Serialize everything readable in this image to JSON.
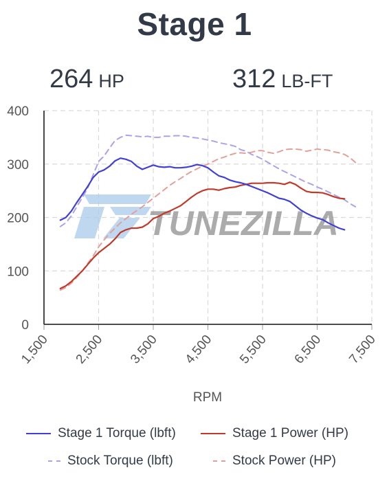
{
  "title": "Stage 1",
  "stats": {
    "hp_value": "264",
    "hp_unit": "HP",
    "tq_value": "312",
    "tq_unit": "LB-FT"
  },
  "watermark": "TUNEZILLA",
  "colors": {
    "stage1_torque": "#4040d8",
    "stage1_power": "#c0392b",
    "stock_torque": "#a9a4ea",
    "stock_power": "#e2a09a",
    "grid": "#d9d9d9",
    "axis": "#333333"
  },
  "chart_data": {
    "type": "line",
    "xlabel": "RPM",
    "ylabel": "",
    "xlim": [
      1500,
      7500
    ],
    "ylim": [
      0,
      400
    ],
    "x_ticks": [
      "1,500",
      "2,500",
      "3,500",
      "4,500",
      "5,500",
      "6,500",
      "7,500"
    ],
    "y_ticks": [
      "0",
      "100",
      "200",
      "300",
      "400"
    ],
    "grid": true,
    "legend_position": "bottom",
    "series": [
      {
        "name": "Stage 1 Torque (lbft)",
        "style": "solid",
        "color": "#4040d8",
        "x": [
          1800,
          1900,
          2000,
          2100,
          2200,
          2300,
          2400,
          2500,
          2600,
          2700,
          2800,
          2900,
          3000,
          3100,
          3200,
          3300,
          3400,
          3500,
          3600,
          3700,
          3800,
          3900,
          4000,
          4100,
          4200,
          4300,
          4400,
          4500,
          4600,
          4700,
          4800,
          4900,
          5000,
          5100,
          5200,
          5300,
          5400,
          5500,
          5600,
          5700,
          5800,
          5900,
          6000,
          6100,
          6200,
          6300,
          6400,
          6500,
          6600,
          6700,
          6800,
          6900,
          7000
        ],
        "values": [
          195,
          200,
          212,
          228,
          243,
          258,
          275,
          285,
          289,
          296,
          306,
          311,
          309,
          305,
          296,
          290,
          294,
          298,
          295,
          294,
          295,
          293,
          293,
          294,
          296,
          299,
          297,
          293,
          285,
          278,
          275,
          270,
          267,
          265,
          262,
          258,
          254,
          250,
          246,
          241,
          236,
          234,
          230,
          222,
          214,
          208,
          203,
          199,
          196,
          190,
          185,
          180,
          177
        ]
      },
      {
        "name": "Stage 1 Power (HP)",
        "style": "solid",
        "color": "#c0392b",
        "x": [
          1800,
          1900,
          2000,
          2100,
          2200,
          2300,
          2400,
          2500,
          2600,
          2700,
          2800,
          2900,
          3000,
          3100,
          3200,
          3300,
          3400,
          3500,
          3600,
          3700,
          3800,
          3900,
          4000,
          4100,
          4200,
          4300,
          4400,
          4500,
          4600,
          4700,
          4800,
          4900,
          5000,
          5100,
          5200,
          5300,
          5400,
          5500,
          5600,
          5700,
          5800,
          5900,
          6000,
          6100,
          6200,
          6300,
          6400,
          6500,
          6600,
          6700,
          6800,
          6900,
          7000
        ],
        "values": [
          67,
          72,
          80,
          90,
          100,
          112,
          124,
          134,
          142,
          150,
          160,
          172,
          177,
          180,
          180,
          182,
          188,
          198,
          202,
          208,
          212,
          217,
          222,
          230,
          238,
          245,
          250,
          253,
          253,
          251,
          254,
          256,
          257,
          260,
          262,
          264,
          264,
          264,
          265,
          265,
          264,
          262,
          266,
          262,
          255,
          249,
          247,
          247,
          246,
          243,
          239,
          236,
          235
        ]
      },
      {
        "name": "Stock Torque (lbft)",
        "style": "dashed",
        "color": "#a9a4ea",
        "x": [
          1800,
          1900,
          2000,
          2100,
          2200,
          2300,
          2400,
          2500,
          2600,
          2700,
          2800,
          2900,
          3000,
          3100,
          3200,
          3300,
          3400,
          3500,
          3600,
          3700,
          3800,
          3900,
          4000,
          4100,
          4200,
          4300,
          4400,
          4500,
          4600,
          4700,
          4800,
          4900,
          5000,
          5100,
          5200,
          5300,
          5400,
          5500,
          5600,
          5700,
          5800,
          5900,
          6000,
          6100,
          6200,
          6300,
          6400,
          6500,
          6600,
          6700,
          6800,
          6900,
          7000,
          7100,
          7200
        ],
        "values": [
          183,
          190,
          203,
          220,
          237,
          255,
          280,
          305,
          315,
          330,
          344,
          350,
          354,
          353,
          352,
          351,
          352,
          350,
          350,
          352,
          352,
          353,
          353,
          352,
          350,
          349,
          347,
          345,
          343,
          340,
          338,
          336,
          333,
          327,
          324,
          318,
          314,
          309,
          303,
          297,
          291,
          286,
          281,
          276,
          271,
          266,
          262,
          257,
          253,
          248,
          243,
          238,
          233,
          226,
          220
        ]
      },
      {
        "name": "Stock Power (HP)",
        "style": "dashed",
        "color": "#e2a09a",
        "x": [
          1800,
          1900,
          2000,
          2100,
          2200,
          2300,
          2400,
          2500,
          2600,
          2700,
          2800,
          2900,
          3000,
          3100,
          3200,
          3300,
          3400,
          3500,
          3600,
          3700,
          3800,
          3900,
          4000,
          4100,
          4200,
          4300,
          4400,
          4500,
          4600,
          4700,
          4800,
          4900,
          5000,
          5100,
          5200,
          5300,
          5400,
          5500,
          5600,
          5700,
          5800,
          5900,
          6000,
          6100,
          6200,
          6300,
          6400,
          6500,
          6600,
          6700,
          6800,
          6900,
          7000,
          7100,
          7200
        ],
        "values": [
          64,
          69,
          77,
          88,
          100,
          114,
          128,
          145,
          158,
          170,
          180,
          190,
          198,
          206,
          213,
          220,
          228,
          236,
          244,
          252,
          260,
          267,
          273,
          280,
          286,
          291,
          296,
          300,
          305,
          310,
          313,
          317,
          320,
          321,
          320,
          322,
          325,
          325,
          322,
          320,
          323,
          327,
          328,
          328,
          327,
          324,
          326,
          328,
          327,
          326,
          323,
          321,
          318,
          312,
          303
        ]
      }
    ]
  },
  "legend": [
    "Stage 1 Torque (lbft)",
    "Stage 1 Power (HP)",
    "Stock Torque (lbft)",
    "Stock Power (HP)"
  ]
}
